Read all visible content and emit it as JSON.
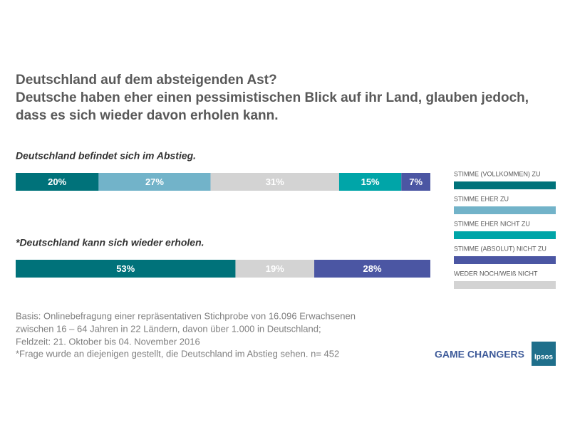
{
  "header": {
    "title_lines": [
      "Deutschland auf dem absteigenden Ast?",
      "Deutsche haben eher einen pessimistischen Blick auf ihr Land, glauben jedoch,",
      "dass es sich wieder davon erholen kann."
    ]
  },
  "chart_data": [
    {
      "type": "stacked_bar",
      "title": "Deutschland befindet sich im Abstieg.",
      "xlim": [
        0,
        100
      ],
      "series": [
        {
          "name": "STIMME (VOLLKOMMEN) ZU",
          "color": "#00727a",
          "values": [
            20
          ],
          "value_labels": [
            "20%"
          ]
        },
        {
          "name": "STIMME EHER ZU",
          "color": "#72b3c9",
          "values": [
            27
          ],
          "value_labels": [
            "27%"
          ]
        },
        {
          "name": "WEDER NOCH/WEIß NICHT",
          "color": "#d3d3d3",
          "values": [
            31
          ],
          "value_labels": [
            "31%"
          ]
        },
        {
          "name": "STIMME EHER NICHT ZU",
          "color": "#00a5a8",
          "values": [
            15
          ],
          "value_labels": [
            "15%"
          ]
        },
        {
          "name": "STIMME (ABSOLUT) NICHT ZU",
          "color": "#4b56a3",
          "values": [
            7
          ],
          "value_labels": [
            "7%"
          ]
        }
      ]
    },
    {
      "type": "stacked_bar",
      "title": "*Deutschland kann sich wieder erholen.",
      "xlim": [
        0,
        100
      ],
      "series": [
        {
          "name": "STIMME (VOLLKOMMEN) ZU",
          "color": "#00727a",
          "values": [
            53
          ],
          "value_labels": [
            "53%"
          ]
        },
        {
          "name": "WEDER NOCH/WEIß NICHT",
          "color": "#d3d3d3",
          "values": [
            19
          ],
          "value_labels": [
            "19%"
          ]
        },
        {
          "name": "STIMME (ABSOLUT) NICHT ZU",
          "color": "#4b56a3",
          "values": [
            28
          ],
          "value_labels": [
            "28%"
          ]
        }
      ]
    }
  ],
  "legend": {
    "entries": [
      {
        "name": "STIMME (VOLLKOMMEN) ZU",
        "color": "#00727a"
      },
      {
        "name": "STIMME EHER ZU",
        "color": "#72b3c9"
      },
      {
        "name": "STIMME EHER NICHT ZU",
        "color": "#00a5a8"
      },
      {
        "name": "STIMME (ABSOLUT) NICHT ZU",
        "color": "#4b56a3"
      },
      {
        "name": "WEDER NOCH/WEIß NICHT",
        "color": "#d3d3d3"
      }
    ]
  },
  "footnotes": [
    "Basis: Onlinebefragung einer repräsentativen Stichprobe von 16.096 Erwachsenen",
    "zwischen 16 – 64 Jahren in 22 Ländern, davon über 1.000 in Deutschland;",
    "Feldzeit: 21. Oktober bis 04. November 2016",
    "*Frage wurde an diejenigen gestellt, die Deutschland im Abstieg sehen. n= 452"
  ],
  "branding": {
    "slogan": "GAME CHANGERS",
    "logo": "Ipsos"
  }
}
